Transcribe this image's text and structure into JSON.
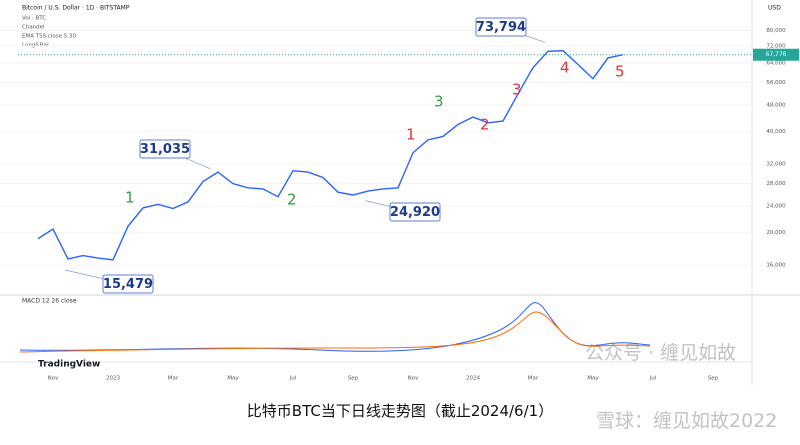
{
  "header": {
    "symbol": "Bitcoin / U.S. Dollar · 1D · BITSTAMP",
    "indicators": [
      "Vol · BTC",
      "Chandel",
      "EMA TSS close 5 30",
      "Long&Bar"
    ],
    "currency": "USD"
  },
  "chart_data": {
    "type": "line",
    "ylog": true,
    "categories": [
      null,
      "Nov",
      null,
      null,
      null,
      "2023",
      null,
      null,
      null,
      "Mar",
      null,
      null,
      null,
      "May",
      null,
      null,
      null,
      "Jul",
      null,
      null,
      null,
      "Sep",
      null,
      null,
      null,
      "Nov",
      null,
      null,
      null,
      "2024",
      null,
      null,
      null,
      "Mar",
      null,
      null,
      null,
      "May",
      null,
      null,
      null,
      "Jul",
      null,
      null,
      null,
      "Sep"
    ],
    "series": [
      {
        "name": "BTCUSD",
        "color": "#2962ff",
        "values": [
          19200,
          20500,
          16700,
          17100,
          16800,
          16600,
          20900,
          23700,
          24300,
          23600,
          24700,
          28400,
          30300,
          28000,
          27200,
          27000,
          25600,
          30600,
          30300,
          29200,
          26400,
          25900,
          26600,
          27000,
          27200,
          34600,
          37800,
          38700,
          42000,
          44200,
          42500,
          43000,
          51800,
          62000,
          69400,
          69700,
          63400,
          57500,
          66300,
          67776,
          null,
          null,
          null,
          null,
          null,
          null
        ]
      }
    ],
    "last_price_label": "67,776",
    "ylim": [
      13500,
      86000
    ],
    "yticks": [
      {
        "value": 16000,
        "label": "16,000"
      },
      {
        "value": 20000,
        "label": "20,000"
      },
      {
        "value": 24000,
        "label": "24,000"
      },
      {
        "value": 28000,
        "label": "28,000"
      },
      {
        "value": 32000,
        "label": "32,000"
      },
      {
        "value": 40000,
        "label": "40,000"
      },
      {
        "value": 48000,
        "label": "48,000"
      },
      {
        "value": 56000,
        "label": "56,000"
      },
      {
        "value": 64000,
        "label": "64,000"
      },
      {
        "value": 72000,
        "label": "72,000"
      },
      {
        "value": 80000,
        "label": "80,000"
      }
    ],
    "annotations": [
      {
        "value": 73794,
        "label": "73,794"
      },
      {
        "value": 31035,
        "label": "31,035"
      },
      {
        "value": 24920,
        "label": "24,920"
      },
      {
        "value": 15479,
        "label": "15,479"
      }
    ],
    "waves": [
      {
        "label": "1",
        "color": "#2e9e3e"
      },
      {
        "label": "2",
        "color": "#2e9e3e"
      },
      {
        "label": "3",
        "color": "#2e9e3e"
      },
      {
        "label": "1",
        "color": "#e0323c"
      },
      {
        "label": "2",
        "color": "#e0323c"
      },
      {
        "label": "3",
        "color": "#e0323c"
      },
      {
        "label": "4",
        "color": "#e0323c"
      },
      {
        "label": "5",
        "color": "#e0323c"
      }
    ],
    "macd_label": "MACD 12 26 close",
    "brand": "TradingView"
  },
  "caption": "比特币BTC当下日线走势图（截止2024/6/1）",
  "watermarks": [
    "公众号 · 缠见如故",
    "雪球：缠见如故2022"
  ]
}
